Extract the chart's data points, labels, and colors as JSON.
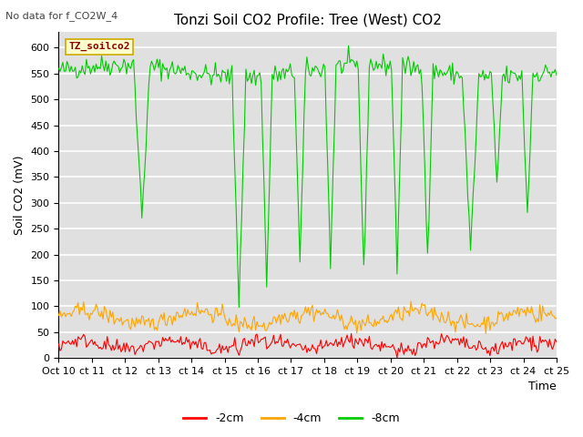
{
  "title": "Tonzi Soil CO2 Profile: Tree (West) CO2",
  "top_left_text": "No data for f_CO2W_4",
  "ylabel": "Soil CO2 (mV)",
  "xlabel": "Time",
  "legend_box_label": "TZ_soilco2",
  "legend_entries": [
    "-2cm",
    "-4cm",
    "-8cm"
  ],
  "legend_colors": [
    "#ff0000",
    "#ffa500",
    "#00cc00"
  ],
  "line_colors_2cm": "#ff0000",
  "line_colors_4cm": "#ffa500",
  "line_colors_8cm": "#00cc00",
  "xtick_labels": [
    "Oct 10",
    "ct 11",
    "ct 12",
    "ct 13",
    "ct 14",
    "ct 15",
    "ct 16",
    "ct 17",
    "ct 18",
    "ct 19",
    "ct 20",
    "ct 21",
    "ct 22",
    "ct 23",
    "ct 24",
    "ct 25"
  ],
  "ylim": [
    0,
    630
  ],
  "yticks": [
    0,
    50,
    100,
    150,
    200,
    250,
    300,
    350,
    400,
    450,
    500,
    550,
    600
  ],
  "background_color": "#e0e0e0",
  "fig_bg_color": "#ffffff",
  "grid_color": "#ffffff",
  "title_fontsize": 11,
  "axis_label_fontsize": 9,
  "tick_fontsize": 8,
  "n_days": 15,
  "n_pts": 360
}
